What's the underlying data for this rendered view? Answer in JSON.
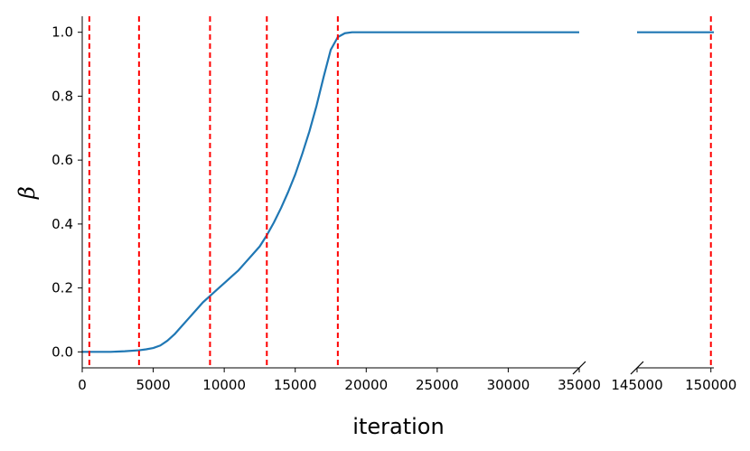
{
  "chart_data": {
    "type": "line",
    "title": "",
    "xlabel": "iteration",
    "ylabel": "β",
    "broken_x_axis": true,
    "x_segments": [
      {
        "xlim": [
          0,
          35000
        ],
        "ticks": [
          0,
          5000,
          10000,
          15000,
          20000,
          25000,
          30000,
          35000
        ],
        "tick_labels": [
          "0",
          "5000",
          "10000",
          "15000",
          "20000",
          "25000",
          "30000",
          "35000"
        ]
      },
      {
        "xlim": [
          145000,
          150200
        ],
        "ticks": [
          145000,
          150000
        ],
        "tick_labels": [
          "145000",
          "150000"
        ]
      }
    ],
    "ylim": [
      -0.05,
      1.05
    ],
    "yticks": [
      0.0,
      0.2,
      0.4,
      0.6,
      0.8,
      1.0
    ],
    "ytick_labels": [
      "0.0",
      "0.2",
      "0.4",
      "0.6",
      "0.8",
      "1.0"
    ],
    "grid": false,
    "series": [
      {
        "color": "#1f77b4",
        "x": [
          0,
          1000,
          2000,
          3000,
          4000,
          4500,
          5000,
          5500,
          6000,
          6500,
          7000,
          7500,
          8000,
          8500,
          9000,
          9500,
          10000,
          10500,
          11000,
          11500,
          12000,
          12500,
          13000,
          13500,
          14000,
          14500,
          15000,
          15500,
          16000,
          16500,
          17000,
          17500,
          18000,
          18500,
          19000,
          20000,
          22000,
          25000,
          30000,
          35000,
          145000,
          150200
        ],
        "y": [
          0.0,
          0.0,
          0.0,
          0.002,
          0.005,
          0.008,
          0.012,
          0.02,
          0.035,
          0.055,
          0.08,
          0.105,
          0.13,
          0.155,
          0.175,
          0.195,
          0.215,
          0.235,
          0.255,
          0.28,
          0.305,
          0.33,
          0.365,
          0.405,
          0.45,
          0.5,
          0.555,
          0.62,
          0.69,
          0.77,
          0.86,
          0.945,
          0.985,
          0.997,
          1.0,
          1.0,
          1.0,
          1.0,
          1.0,
          1.0,
          1.0,
          1.0
        ]
      }
    ],
    "vlines": {
      "color": "#ff0000",
      "style": "dashed",
      "x": [
        500,
        4000,
        9000,
        13000,
        18000,
        150000
      ]
    }
  }
}
